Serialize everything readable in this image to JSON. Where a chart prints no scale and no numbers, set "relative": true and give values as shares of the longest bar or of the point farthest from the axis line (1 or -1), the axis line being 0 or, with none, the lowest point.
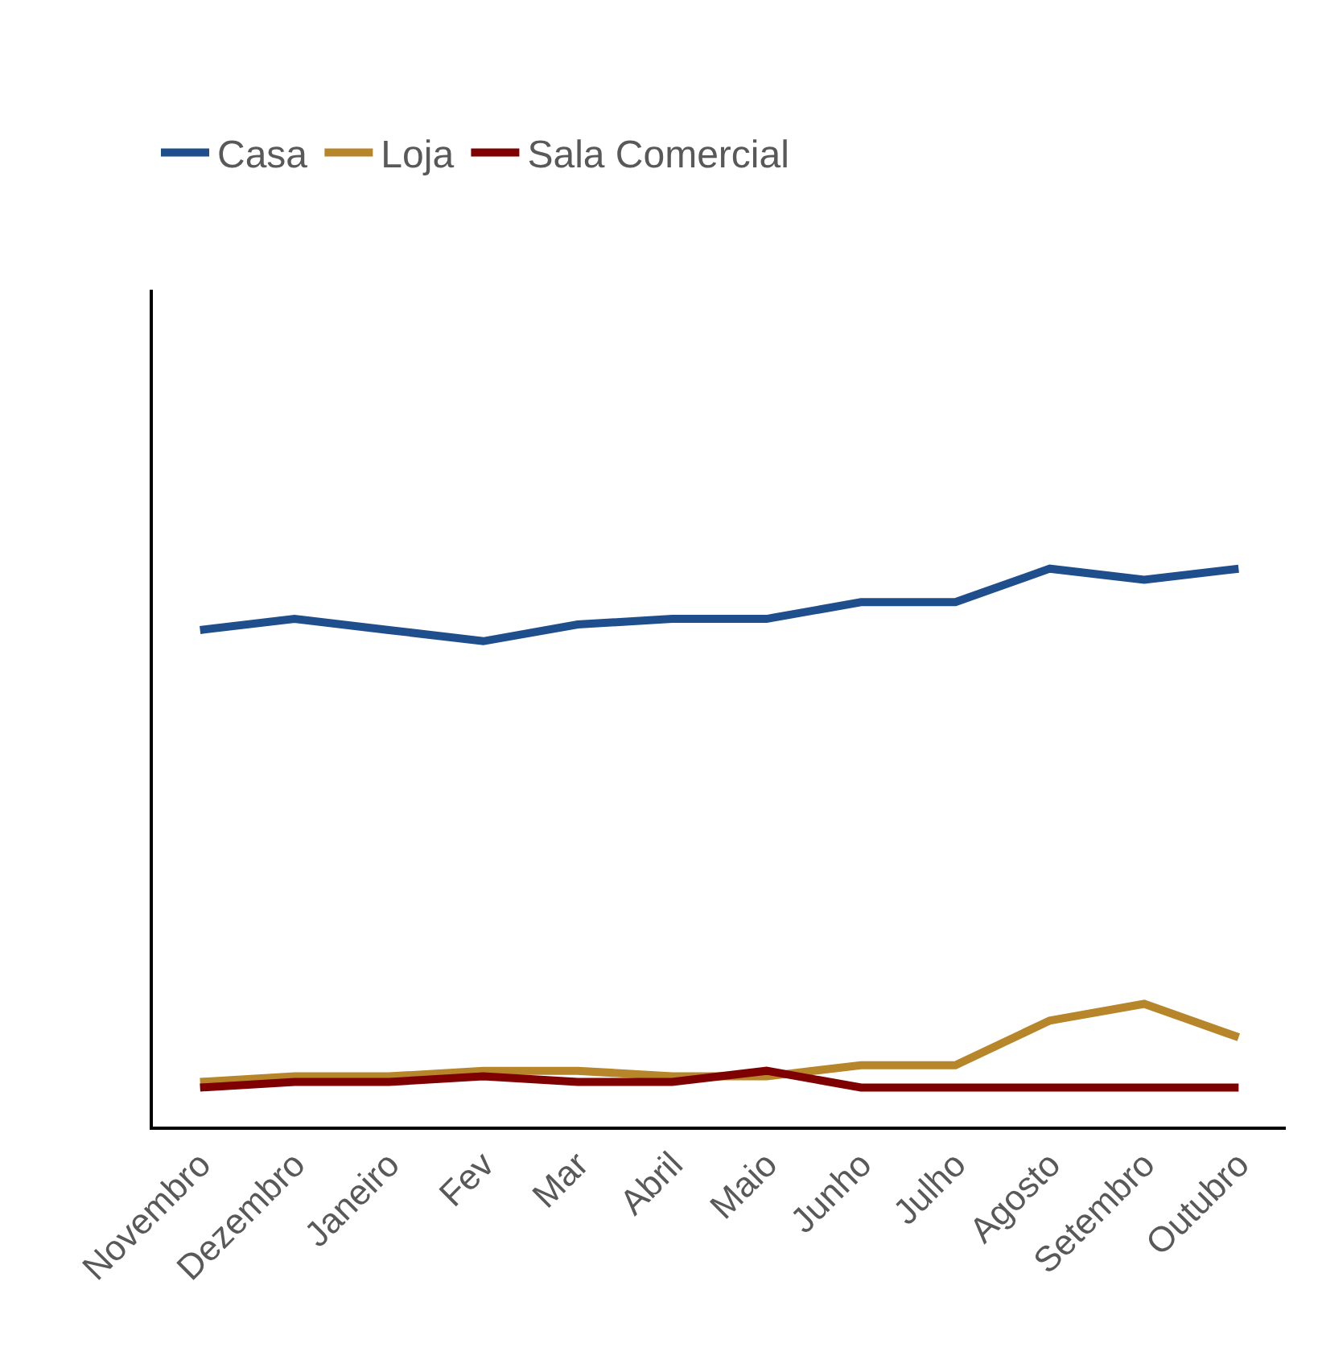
{
  "chart_data": {
    "type": "line",
    "relative": true,
    "legend": "top left",
    "marker": "none",
    "line_style": "solid",
    "categories": [
      "Novembro",
      "Dezembro",
      "Janeiro",
      "Fev",
      "Mar",
      "Abril",
      "Maio",
      "Junho",
      "Julho",
      "Agosto",
      "Setembro",
      "Outubro"
    ],
    "series": [
      {
        "name": "Casa",
        "color": "#1f4e8c",
        "values": [
          0.89,
          0.91,
          0.89,
          0.87,
          0.9,
          0.91,
          0.91,
          0.94,
          0.94,
          1,
          0.98,
          1
        ]
      },
      {
        "name": "Loja",
        "color": "#b8862a",
        "values": [
          0.08,
          0.09,
          0.09,
          0.1,
          0.1,
          0.09,
          0.09,
          0.11,
          0.11,
          0.19,
          0.22,
          0.16
        ]
      },
      {
        "name": "Sala Comercial",
        "color": "#7f0000",
        "values": [
          0.07,
          0.08,
          0.08,
          0.09,
          0.08,
          0.08,
          0.1,
          0.07,
          0.07,
          0.07,
          0.07,
          0.07
        ]
      }
    ]
  }
}
